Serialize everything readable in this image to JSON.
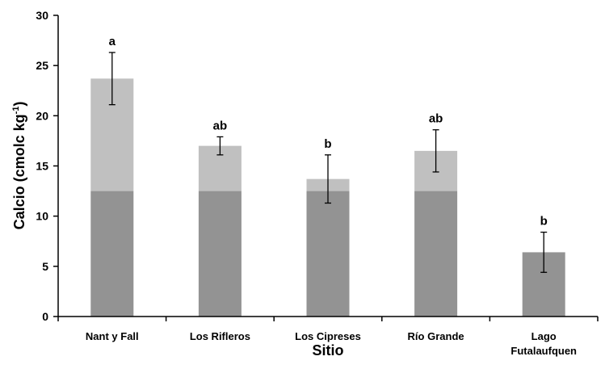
{
  "chart_data": {
    "type": "bar",
    "stacked": true,
    "xlabel": "Sitio",
    "ylabel_main": "Calcio (cmolc kg",
    "ylabel_sup": "-1",
    "ylabel_close": ")",
    "ylim": [
      0,
      30
    ],
    "yticks": [
      0,
      5,
      10,
      15,
      20,
      25,
      30
    ],
    "grid": false,
    "categories": [
      [
        "Nant y Fall"
      ],
      [
        "Los Rifleros"
      ],
      [
        "Los Cipreses"
      ],
      [
        "Río Grande"
      ],
      [
        "Lago",
        "Futalaufquen"
      ]
    ],
    "series": [
      {
        "values": [
          12.5,
          12.5,
          12.5,
          12.5,
          6.4
        ],
        "color": "#939393"
      },
      {
        "values": [
          11.2,
          4.5,
          1.2,
          4.0,
          0
        ],
        "color": "#c0c0c0"
      }
    ],
    "totals": [
      23.7,
      17.0,
      13.7,
      16.5,
      6.4
    ],
    "errors": [
      2.6,
      0.9,
      2.4,
      2.1,
      2.0
    ],
    "significance": [
      "a",
      "ab",
      "b",
      "ab",
      "b"
    ]
  }
}
